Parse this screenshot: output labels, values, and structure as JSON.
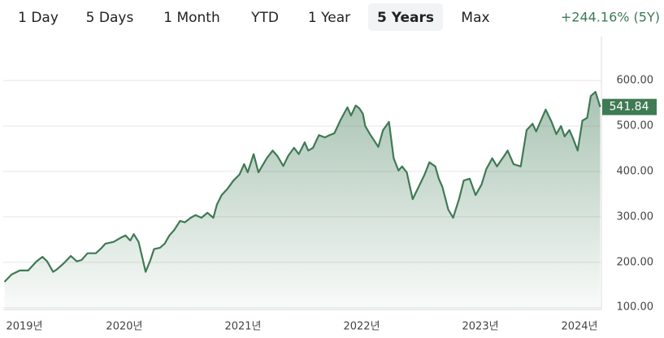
{
  "tabs": [
    "1 Day",
    "5 Days",
    "1 Month",
    "YTD",
    "1 Year",
    "5 Years",
    "Max"
  ],
  "active_tab": 5,
  "change": "+244.16% (5Y)",
  "chart_data": {
    "type": "area",
    "color": "#3f7a55",
    "x": [
      2018.99,
      2019.05,
      2019.12,
      2019.19,
      2019.26,
      2019.31,
      2019.35,
      2019.4,
      2019.43,
      2019.49,
      2019.55,
      2019.6,
      2019.64,
      2019.69,
      2019.76,
      2019.81,
      2019.84,
      2019.91,
      2019.97,
      2020.01,
      2020.05,
      2020.08,
      2020.12,
      2020.15,
      2020.18,
      2020.22,
      2020.25,
      2020.3,
      2020.34,
      2020.38,
      2020.42,
      2020.47,
      2020.51,
      2020.56,
      2020.6,
      2020.65,
      2020.7,
      2020.75,
      2020.78,
      2020.82,
      2020.87,
      2020.92,
      2020.97,
      2021.01,
      2021.04,
      2021.09,
      2021.13,
      2021.16,
      2021.2,
      2021.25,
      2021.29,
      2021.34,
      2021.38,
      2021.43,
      2021.47,
      2021.52,
      2021.55,
      2021.59,
      2021.64,
      2021.69,
      2021.73,
      2021.77,
      2021.82,
      2021.85,
      2021.88,
      2021.91,
      2021.95,
      2021.98,
      2022.01,
      2022.03,
      2022.07,
      2022.1,
      2022.14,
      2022.18,
      2022.23,
      2022.27,
      2022.31,
      2022.34,
      2022.38,
      2022.43,
      2022.48,
      2022.53,
      2022.57,
      2022.62,
      2022.65,
      2022.68,
      2022.73,
      2022.77,
      2022.82,
      2022.86,
      2022.91,
      2022.96,
      2023.01,
      2023.05,
      2023.1,
      2023.14,
      2023.2,
      2023.23,
      2023.28,
      2023.34,
      2023.39,
      2023.44,
      2023.47,
      2023.51,
      2023.55,
      2023.6,
      2023.64,
      2023.68,
      2023.71,
      2023.75,
      2023.78,
      2023.82,
      2023.86,
      2023.9,
      2023.93,
      2023.97,
      2024.01
    ],
    "series": [
      {
        "values": [
          157,
          173,
          182,
          182,
          202,
          212,
          202,
          179,
          184,
          198,
          214,
          202,
          205,
          220,
          220,
          232,
          241,
          245,
          254,
          259,
          248,
          262,
          245,
          212,
          179,
          205,
          229,
          232,
          241,
          259,
          271,
          291,
          288,
          298,
          304,
          298,
          309,
          298,
          327,
          348,
          362,
          380,
          393,
          416,
          398,
          438,
          398,
          411,
          429,
          446,
          434,
          412,
          434,
          452,
          438,
          464,
          446,
          452,
          480,
          475,
          480,
          484,
          512,
          527,
          541,
          523,
          545,
          539,
          527,
          500,
          482,
          470,
          454,
          491,
          509,
          429,
          402,
          411,
          398,
          339,
          366,
          393,
          420,
          411,
          384,
          366,
          316,
          298,
          339,
          380,
          384,
          348,
          371,
          405,
          429,
          411,
          434,
          446,
          416,
          411,
          491,
          505,
          488,
          512,
          536,
          509,
          482,
          500,
          477,
          491,
          473,
          446,
          512,
          518,
          566,
          575,
          541.84
        ]
      }
    ],
    "xlim": [
      2018.98,
      2024.02
    ],
    "xticks": [
      {
        "value": 2019,
        "label": "2019년"
      },
      {
        "value": 2020,
        "label": "2020년"
      },
      {
        "value": 2021,
        "label": "2021년"
      },
      {
        "value": 2022,
        "label": "2022년"
      },
      {
        "value": 2023,
        "label": "2023년"
      },
      {
        "value": 2024,
        "label": "2024년"
      }
    ],
    "ylim": [
      96,
      670
    ],
    "yticks": [
      {
        "value": 100,
        "label": "100.00"
      },
      {
        "value": 200,
        "label": "200.00"
      },
      {
        "value": 300,
        "label": "300.00"
      },
      {
        "value": 400,
        "label": "400.00"
      },
      {
        "value": 500,
        "label": "500.00"
      },
      {
        "value": 600,
        "label": "600.00"
      }
    ],
    "grid": true
  }
}
